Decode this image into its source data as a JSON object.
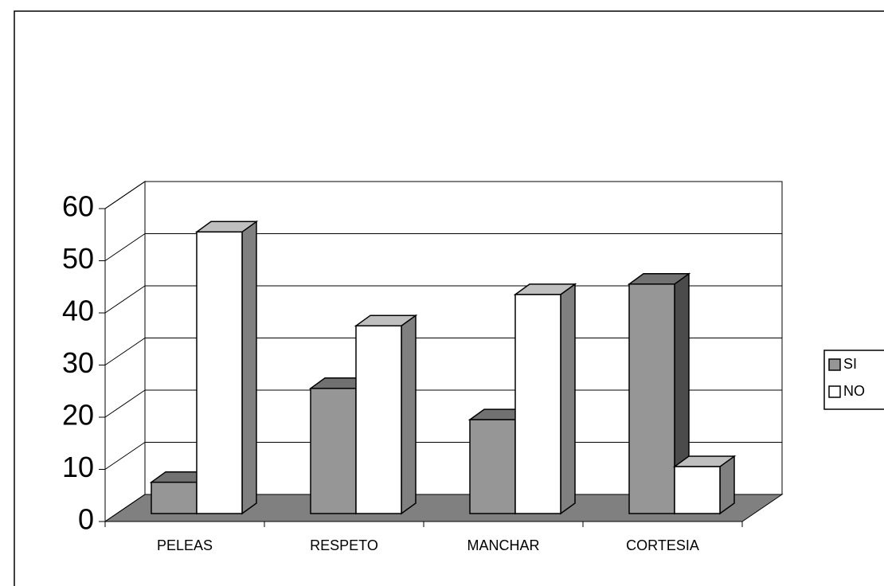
{
  "chart_data": {
    "type": "bar3d",
    "categories": [
      "PELEAS",
      "RESPETO",
      "MANCHAR",
      "CORTESIA"
    ],
    "series": [
      {
        "name": "SI",
        "color": "#969696",
        "values": [
          6,
          24,
          18,
          44
        ]
      },
      {
        "name": "NO",
        "color": "#ffffff",
        "values": [
          54,
          36,
          42,
          9
        ]
      }
    ],
    "ylim": [
      0,
      60
    ],
    "yticks": [
      0,
      10,
      20,
      30,
      40,
      50,
      60
    ],
    "grid": true,
    "legend": "right"
  }
}
